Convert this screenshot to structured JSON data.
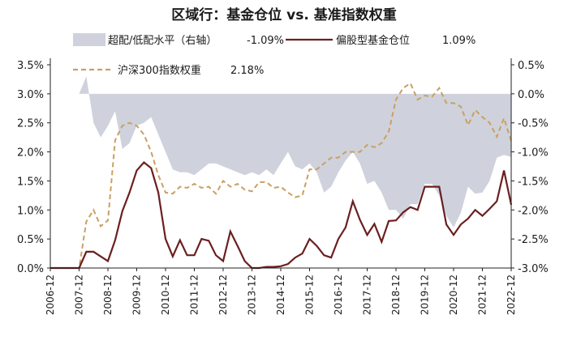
{
  "chart_data": {
    "type": "line",
    "title": "区域行：基金仓位 vs. 基准指数权重",
    "legend": {
      "placement": "top",
      "items": [
        {
          "key": "gap",
          "label": "超配/低配水平（右轴）",
          "value": "-1.09%",
          "style": "area",
          "color": "#cfd2dc"
        },
        {
          "key": "fund",
          "label": "偏股型基金仓位",
          "value": "1.09%",
          "style": "line",
          "color": "#6b1f1f"
        },
        {
          "key": "index",
          "label": "沪深300指数权重",
          "value": "2.18%",
          "style": "dashed",
          "color": "#c9a063"
        }
      ]
    },
    "xlabels": [
      "2006-12",
      "2007-12",
      "2008-12",
      "2009-12",
      "2010-12",
      "2011-12",
      "2012-12",
      "2013-12",
      "2014-12",
      "2015-12",
      "2016-12",
      "2017-12",
      "2018-12",
      "2019-12",
      "2020-12",
      "2021-12",
      "2022-12"
    ],
    "x": [
      0,
      1,
      2,
      3,
      4,
      5,
      6,
      7,
      8,
      9,
      10,
      11,
      12,
      13,
      14,
      15,
      16,
      17,
      18,
      19,
      20,
      21,
      22,
      23,
      24,
      25,
      26,
      27,
      28,
      29,
      30,
      31,
      32,
      33,
      34,
      35,
      36,
      37,
      38,
      39,
      40,
      41,
      42,
      43,
      44,
      45,
      46,
      47,
      48,
      49,
      50,
      51,
      52,
      53,
      54,
      55,
      56,
      57,
      58,
      59,
      60,
      61,
      62,
      63,
      64
    ],
    "left_axis": {
      "min": 0,
      "max": 3.5,
      "ticks": [
        "0.0%",
        "0.5%",
        "1.0%",
        "1.5%",
        "2.0%",
        "2.5%",
        "3.0%",
        "3.5%"
      ]
    },
    "right_axis": {
      "min": -3.0,
      "max": 0.5,
      "ticks": [
        "-3.0%",
        "-2.5%",
        "-2.0%",
        "-1.5%",
        "-1.0%",
        "-0.5%",
        "0.0%",
        "0.5%"
      ]
    },
    "series": [
      {
        "name": "偏股型基金仓位",
        "axis": "left",
        "values": [
          0.0,
          0.0,
          0.0,
          0.0,
          0.0,
          0.28,
          0.28,
          0.2,
          0.12,
          0.48,
          0.98,
          1.3,
          1.68,
          1.82,
          1.72,
          1.3,
          0.5,
          0.2,
          0.48,
          0.22,
          0.22,
          0.5,
          0.47,
          0.22,
          0.12,
          0.63,
          0.38,
          0.12,
          0.0,
          0.0,
          0.02,
          0.02,
          0.03,
          0.07,
          0.18,
          0.25,
          0.5,
          0.38,
          0.22,
          0.18,
          0.5,
          0.7,
          1.15,
          0.83,
          0.57,
          0.76,
          0.45,
          0.81,
          0.82,
          0.96,
          1.05,
          1.0,
          1.4,
          1.4,
          1.4,
          0.75,
          0.57,
          0.75,
          0.85,
          1.0,
          0.9,
          1.02,
          1.15,
          1.68,
          1.09
        ]
      },
      {
        "name": "沪深300指数权重",
        "axis": "left",
        "values": [
          0.0,
          0.0,
          0.0,
          0.0,
          0.0,
          0.8,
          1.0,
          0.72,
          0.82,
          2.2,
          2.45,
          2.5,
          2.45,
          2.3,
          2.0,
          1.6,
          1.3,
          1.28,
          1.4,
          1.38,
          1.45,
          1.38,
          1.4,
          1.28,
          1.5,
          1.4,
          1.45,
          1.35,
          1.32,
          1.48,
          1.48,
          1.38,
          1.4,
          1.3,
          1.22,
          1.25,
          1.7,
          1.7,
          1.8,
          1.9,
          1.9,
          2.0,
          2.0,
          2.0,
          2.12,
          2.08,
          2.15,
          2.35,
          2.9,
          3.1,
          3.18,
          2.9,
          2.97,
          2.95,
          3.1,
          2.84,
          2.84,
          2.78,
          2.46,
          2.72,
          2.6,
          2.5,
          2.26,
          2.58,
          2.18
        ]
      },
      {
        "name": "超配/低配水平（右轴）",
        "axis": "right",
        "values": [
          null,
          null,
          null,
          null,
          0.0,
          0.3,
          -0.5,
          -0.75,
          -0.55,
          -0.3,
          -0.95,
          -0.85,
          -0.55,
          -0.5,
          -0.4,
          -0.7,
          -1.0,
          -1.3,
          -1.35,
          -1.35,
          -1.4,
          -1.3,
          -1.2,
          -1.2,
          -1.25,
          -1.3,
          -1.35,
          -1.4,
          -1.35,
          -1.4,
          -1.3,
          -1.4,
          -1.2,
          -1.0,
          -1.25,
          -1.3,
          -1.2,
          -1.35,
          -1.7,
          -1.6,
          -1.35,
          -1.15,
          -1.0,
          -1.2,
          -1.55,
          -1.5,
          -1.7,
          -2.0,
          -2.0,
          -2.15,
          -1.9,
          -1.9,
          -1.55,
          -1.55,
          -1.75,
          -2.1,
          -2.3,
          -2.05,
          -1.6,
          -1.72,
          -1.7,
          -1.5,
          -1.1,
          -1.05,
          -1.09
        ]
      }
    ],
    "grid": false
  }
}
